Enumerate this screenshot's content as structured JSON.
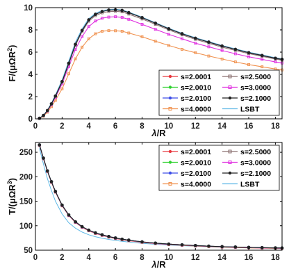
{
  "chart_data": [
    {
      "type": "line",
      "ylabel_main": "F/(μΩR",
      "ylabel_sup": "2",
      "ylabel_close": ")",
      "xlabel_main": "λ",
      "xlabel_rest": "/R",
      "xlim": [
        0,
        18.5
      ],
      "ylim": [
        0,
        10
      ],
      "xticks": [
        0,
        2,
        4,
        6,
        8,
        10,
        12,
        14,
        16,
        18
      ],
      "yticks": [
        0,
        2,
        4,
        6,
        8,
        10
      ],
      "grid": false,
      "legend_position": "lower-right",
      "x": [
        0.3,
        0.6,
        0.9,
        1.2,
        1.5,
        2,
        2.5,
        3,
        3.5,
        4,
        4.5,
        5,
        5.5,
        6,
        6.5,
        7,
        8,
        9,
        10,
        11,
        12,
        13,
        14,
        15,
        16,
        17,
        18,
        18.5
      ],
      "series": [
        {
          "name": "s=2.0001",
          "color": "#e8373d",
          "marker": "circle",
          "values": [
            0.05,
            0.3,
            0.75,
            1.35,
            2.05,
            3.35,
            5.0,
            6.7,
            7.95,
            8.9,
            9.4,
            9.65,
            9.78,
            9.8,
            9.75,
            9.55,
            9.1,
            8.6,
            8.1,
            7.65,
            7.25,
            6.9,
            6.55,
            6.25,
            5.95,
            5.7,
            5.45,
            5.35
          ]
        },
        {
          "name": "s=2.0010",
          "color": "#2fd12f",
          "marker": "circle",
          "values": [
            0.05,
            0.3,
            0.75,
            1.35,
            2.05,
            3.35,
            5.0,
            6.7,
            7.95,
            8.9,
            9.4,
            9.65,
            9.78,
            9.8,
            9.75,
            9.55,
            9.1,
            8.6,
            8.1,
            7.65,
            7.25,
            6.9,
            6.55,
            6.25,
            5.95,
            5.7,
            5.45,
            5.35
          ]
        },
        {
          "name": "s=2.0100",
          "color": "#3d4ee8",
          "marker": "circle",
          "values": [
            0.05,
            0.3,
            0.75,
            1.35,
            2.05,
            3.35,
            5.0,
            6.7,
            7.95,
            8.9,
            9.4,
            9.65,
            9.78,
            9.8,
            9.75,
            9.55,
            9.1,
            8.6,
            8.1,
            7.65,
            7.25,
            6.9,
            6.55,
            6.25,
            5.95,
            5.7,
            5.45,
            5.35
          ]
        },
        {
          "name": "s=2.1000",
          "color": "#222222",
          "marker": "circle",
          "values": [
            0.05,
            0.3,
            0.75,
            1.35,
            2.05,
            3.35,
            5.0,
            6.7,
            7.95,
            8.9,
            9.4,
            9.65,
            9.78,
            9.8,
            9.75,
            9.55,
            9.1,
            8.6,
            8.1,
            7.65,
            7.25,
            6.9,
            6.55,
            6.25,
            5.95,
            5.7,
            5.45,
            5.35
          ]
        },
        {
          "name": "s=2.5000",
          "color": "#8a6f6f",
          "marker": "square",
          "values": [
            0.05,
            0.3,
            0.74,
            1.33,
            2.02,
            3.3,
            4.93,
            6.6,
            7.85,
            8.78,
            9.28,
            9.53,
            9.65,
            9.67,
            9.62,
            9.42,
            8.98,
            8.5,
            8.0,
            7.55,
            7.15,
            6.8,
            6.45,
            6.15,
            5.87,
            5.62,
            5.38,
            5.27
          ]
        },
        {
          "name": "s=3.0000",
          "color": "#e030e0",
          "marker": "square",
          "values": [
            0.05,
            0.28,
            0.7,
            1.27,
            1.93,
            3.15,
            4.7,
            6.25,
            7.4,
            8.3,
            8.8,
            9.05,
            9.15,
            9.18,
            9.12,
            8.95,
            8.5,
            8.05,
            7.6,
            7.2,
            6.8,
            6.48,
            6.15,
            5.85,
            5.58,
            5.35,
            5.12,
            5.02
          ]
        },
        {
          "name": "s=4.0000",
          "color": "#f0914e",
          "marker": "square",
          "values": [
            0.04,
            0.24,
            0.6,
            1.1,
            1.66,
            2.7,
            4.05,
            5.4,
            6.45,
            7.2,
            7.65,
            7.88,
            7.93,
            7.92,
            7.88,
            7.72,
            7.38,
            6.98,
            6.6,
            6.25,
            5.95,
            5.65,
            5.38,
            5.12,
            4.88,
            4.68,
            4.48,
            4.4
          ]
        },
        {
          "name": "LSBT",
          "color": "#5fb8e6",
          "marker": "none",
          "values": [
            0.06,
            0.32,
            0.8,
            1.42,
            2.15,
            3.5,
            5.2,
            6.9,
            8.1,
            9.02,
            9.5,
            9.73,
            9.84,
            9.86,
            9.8,
            9.6,
            9.15,
            8.65,
            8.15,
            7.7,
            7.3,
            6.95,
            6.6,
            6.3,
            6.0,
            5.75,
            5.5,
            5.4
          ]
        }
      ]
    },
    {
      "type": "line",
      "ylabel_main": "T/(μΩR",
      "ylabel_sup": "3",
      "ylabel_close": ")",
      "xlabel_main": "λ",
      "xlabel_rest": "/R",
      "xlim": [
        0,
        18.5
      ],
      "ylim": [
        50,
        270
      ],
      "xticks": [
        0,
        2,
        4,
        6,
        8,
        10,
        12,
        14,
        16,
        18
      ],
      "yticks": [
        50,
        100,
        150,
        200,
        250
      ],
      "grid": false,
      "legend_position": "top-right",
      "x": [
        0.3,
        0.6,
        0.9,
        1.2,
        1.5,
        2,
        2.5,
        3,
        3.5,
        4,
        4.5,
        5,
        5.5,
        6,
        6.5,
        7,
        8,
        9,
        10,
        11,
        12,
        13,
        14,
        15,
        16,
        17,
        18,
        18.5
      ],
      "series": [
        {
          "name": "s=2.0001",
          "color": "#e8373d",
          "marker": "circle",
          "values": [
            265,
            238,
            212,
            190,
            170,
            142,
            122,
            108,
            98,
            91,
            85.5,
            81.5,
            78,
            75,
            72.5,
            70.5,
            67,
            64.5,
            62.5,
            61,
            59.5,
            58.3,
            57.3,
            56.5,
            55.8,
            55.2,
            54.7,
            54.5
          ]
        },
        {
          "name": "s=2.0010",
          "color": "#2fd12f",
          "marker": "circle",
          "values": [
            265,
            238,
            212,
            190,
            170,
            142,
            122,
            108,
            98,
            91,
            85.5,
            81.5,
            78,
            75,
            72.5,
            70.5,
            67,
            64.5,
            62.5,
            61,
            59.5,
            58.3,
            57.3,
            56.5,
            55.8,
            55.2,
            54.7,
            54.5
          ]
        },
        {
          "name": "s=2.0100",
          "color": "#3d4ee8",
          "marker": "circle",
          "values": [
            265,
            238,
            212,
            190,
            170,
            142,
            122,
            108,
            98,
            91,
            85.5,
            81.5,
            78,
            75,
            72.5,
            70.5,
            67,
            64.5,
            62.5,
            61,
            59.5,
            58.3,
            57.3,
            56.5,
            55.8,
            55.2,
            54.7,
            54.5
          ]
        },
        {
          "name": "s=2.1000",
          "color": "#222222",
          "marker": "circle",
          "values": [
            265,
            238,
            212,
            190,
            170,
            142,
            122,
            108,
            98,
            91,
            85.5,
            81.5,
            78,
            75,
            72.5,
            70.5,
            67,
            64.5,
            62.5,
            61,
            59.5,
            58.3,
            57.3,
            56.5,
            55.8,
            55.2,
            54.7,
            54.5
          ]
        },
        {
          "name": "s=2.5000",
          "color": "#8a6f6f",
          "marker": "square",
          "values": [
            265,
            237.5,
            211.5,
            189.5,
            169.5,
            141.5,
            121.5,
            107.5,
            97.5,
            90.5,
            85,
            81,
            77.5,
            74.6,
            72.1,
            70.1,
            66.7,
            64.2,
            62.2,
            60.7,
            59.2,
            58.0,
            57.0,
            56.2,
            55.5,
            54.9,
            54.4,
            54.2
          ]
        },
        {
          "name": "s=3.0000",
          "color": "#e030e0",
          "marker": "square",
          "values": [
            264.5,
            237,
            211,
            189,
            169,
            141,
            121,
            107,
            97,
            90,
            84.5,
            80.5,
            77,
            74.2,
            71.7,
            69.7,
            66.3,
            63.8,
            61.8,
            60.3,
            58.9,
            57.7,
            56.7,
            55.9,
            55.2,
            54.6,
            54.1,
            53.9
          ]
        },
        {
          "name": "s=4.0000",
          "color": "#f0914e",
          "marker": "square",
          "values": [
            264,
            236.5,
            210.5,
            188.5,
            168.5,
            140.5,
            120.5,
            106.5,
            96.5,
            89.5,
            84,
            80,
            76.5,
            73.7,
            71.2,
            69.2,
            65.8,
            63.3,
            61.3,
            59.8,
            58.4,
            57.2,
            56.2,
            55.4,
            54.7,
            54.1,
            53.6,
            53.4
          ]
        },
        {
          "name": "LSBT",
          "color": "#5fb8e6",
          "marker": "none",
          "values": [
            258,
            226,
            196,
            172,
            150,
            124,
            106,
            95,
            87,
            81.5,
            77.5,
            74.5,
            72,
            70,
            68.2,
            66.7,
            64,
            62,
            60.5,
            59.2,
            58,
            57,
            56.2,
            55.5,
            54.9,
            54.4,
            54,
            53.8
          ]
        }
      ]
    }
  ],
  "legend_order": [
    0,
    4,
    1,
    5,
    2,
    3,
    6,
    7
  ]
}
